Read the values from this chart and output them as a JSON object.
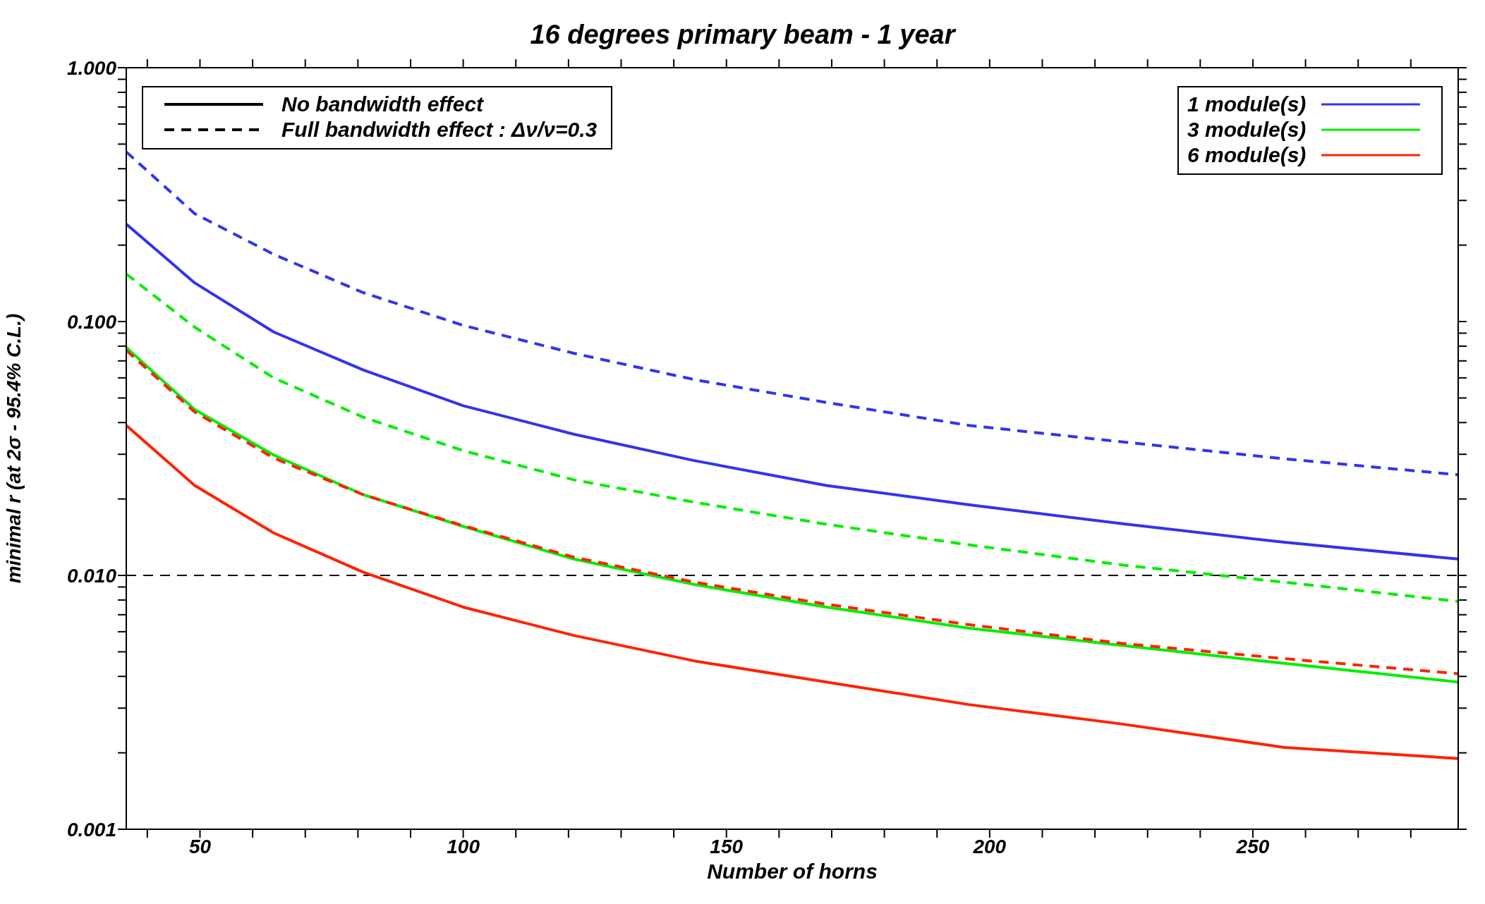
{
  "chart_data": {
    "type": "line",
    "title": "16 degrees primary beam - 1 year",
    "xlabel": "Number of horns",
    "ylabel": "minimal r (at 2σ - 95.4% C.L.)",
    "x": [
      36,
      49,
      64,
      81,
      100,
      121,
      144,
      169,
      196,
      225,
      256,
      289
    ],
    "series": [
      {
        "name": "1 module(s)",
        "color": "#3333ee",
        "line_style": "solid",
        "values": [
          0.242,
          0.142,
          0.091,
          0.0645,
          0.0466,
          0.036,
          0.0283,
          0.0226,
          0.019,
          0.016,
          0.0135,
          0.0116
        ]
      },
      {
        "name": "3 module(s)",
        "color": "#00ee00",
        "line_style": "solid",
        "values": [
          0.079,
          0.045,
          0.0298,
          0.0208,
          0.0156,
          0.0116,
          0.0092,
          0.0075,
          0.0062,
          0.0053,
          0.0045,
          0.0038
        ]
      },
      {
        "name": "6 module(s)",
        "color": "#ff2200",
        "line_style": "solid",
        "values": [
          0.039,
          0.0226,
          0.0147,
          0.0103,
          0.0075,
          0.0058,
          0.0046,
          0.0038,
          0.0031,
          0.0026,
          0.0021,
          0.0019
        ]
      },
      {
        "color": "#3333ee",
        "line_style": "dashed",
        "values": [
          0.466,
          0.266,
          0.184,
          0.13,
          0.0966,
          0.075,
          0.059,
          0.048,
          0.039,
          0.0336,
          0.0288,
          0.0249
        ]
      },
      {
        "color": "#00ee00",
        "line_style": "dashed",
        "values": [
          0.154,
          0.095,
          0.06,
          0.042,
          0.031,
          0.0238,
          0.0194,
          0.0159,
          0.0132,
          0.011,
          0.0094,
          0.0079
        ]
      },
      {
        "color": "#ff2200",
        "line_style": "dashed",
        "values": [
          0.077,
          0.044,
          0.029,
          0.0208,
          0.0157,
          0.0118,
          0.0094,
          0.0077,
          0.0064,
          0.0054,
          0.0047,
          0.0041
        ]
      }
    ],
    "xlim": [
      36,
      289
    ],
    "xticks": [
      {
        "value": 40,
        "label": null
      },
      50,
      {
        "value": 60,
        "label": null
      },
      {
        "value": 70,
        "label": null
      },
      {
        "value": 80,
        "label": null
      },
      {
        "value": 90,
        "label": null
      },
      100,
      {
        "value": 110,
        "label": null
      },
      {
        "value": 120,
        "label": null
      },
      {
        "value": 130,
        "label": null
      },
      {
        "value": 140,
        "label": null
      },
      150,
      {
        "value": 160,
        "label": null
      },
      {
        "value": 170,
        "label": null
      },
      {
        "value": 180,
        "label": null
      },
      {
        "value": 190,
        "label": null
      },
      200,
      {
        "value": 210,
        "label": null
      },
      {
        "value": 220,
        "label": null
      },
      {
        "value": 230,
        "label": null
      },
      {
        "value": 240,
        "label": null
      },
      250,
      {
        "value": 260,
        "label": null
      },
      {
        "value": 270,
        "label": null
      },
      {
        "value": 280,
        "label": null
      }
    ],
    "ylim": [
      0.001,
      1
    ],
    "yticks": [
      {
        "value": 0.001,
        "label": "0.001"
      },
      {
        "value": 0.002,
        "label": null
      },
      {
        "value": 0.003,
        "label": null
      },
      {
        "value": 0.004,
        "label": null
      },
      {
        "value": 0.005,
        "label": null
      },
      {
        "value": 0.006,
        "label": null
      },
      {
        "value": 0.007,
        "label": null
      },
      {
        "value": 0.008,
        "label": null
      },
      {
        "value": 0.009,
        "label": null
      },
      {
        "value": 0.01,
        "label": "0.010"
      },
      {
        "value": 0.02,
        "label": null
      },
      {
        "value": 0.03,
        "label": null
      },
      {
        "value": 0.04,
        "label": null
      },
      {
        "value": 0.05,
        "label": null
      },
      {
        "value": 0.06,
        "label": null
      },
      {
        "value": 0.07,
        "label": null
      },
      {
        "value": 0.08,
        "label": null
      },
      {
        "value": 0.09,
        "label": null
      },
      {
        "value": 0.1,
        "label": "0.100"
      },
      {
        "value": 0.2,
        "label": null
      },
      {
        "value": 0.3,
        "label": null
      },
      {
        "value": 0.4,
        "label": null
      },
      {
        "value": 0.5,
        "label": null
      },
      {
        "value": 0.6,
        "label": null
      },
      {
        "value": 0.7,
        "label": null
      },
      {
        "value": 0.8,
        "label": null
      },
      {
        "value": 0.9,
        "label": null
      },
      {
        "value": 1,
        "label": "1.000"
      }
    ],
    "log": "y",
    "grid": false,
    "marker": "none",
    "legend": "top right",
    "ref_lines": [
      {
        "axis": "y",
        "value": 0.01,
        "color": "#000000",
        "line_style": "dashed"
      }
    ],
    "annotations": [
      "No bandwidth effect",
      "Full bandwidth effect : Δν/ν=0.3"
    ]
  }
}
